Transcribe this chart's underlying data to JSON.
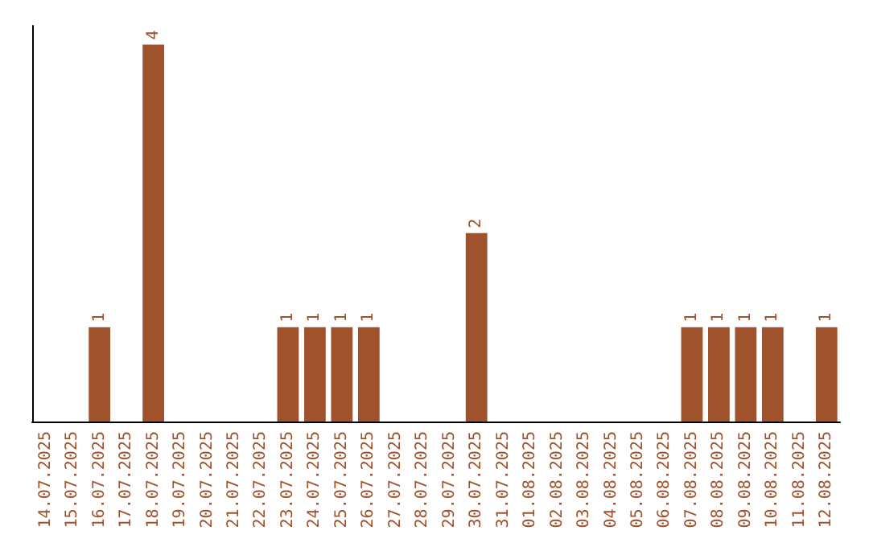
{
  "chart_data": {
    "type": "bar",
    "categories": [
      "14.07.2025",
      "15.07.2025",
      "16.07.2025",
      "17.07.2025",
      "18.07.2025",
      "19.07.2025",
      "20.07.2025",
      "21.07.2025",
      "22.07.2025",
      "23.07.2025",
      "24.07.2025",
      "25.07.2025",
      "26.07.2025",
      "27.07.2025",
      "28.07.2025",
      "29.07.2025",
      "30.07.2025",
      "31.07.2025",
      "01.08.2025",
      "02.08.2025",
      "03.08.2025",
      "04.08.2025",
      "05.08.2025",
      "06.08.2025",
      "07.08.2025",
      "08.08.2025",
      "09.08.2025",
      "10.08.2025",
      "11.08.2025",
      "12.08.2025"
    ],
    "values": [
      null,
      null,
      1,
      null,
      4,
      null,
      null,
      null,
      null,
      1,
      1,
      1,
      1,
      null,
      null,
      null,
      2,
      null,
      null,
      null,
      null,
      null,
      null,
      null,
      1,
      1,
      1,
      1,
      null,
      1
    ],
    "color": "#a0522d",
    "ylim": [
      0,
      4.2
    ],
    "data_labels": true,
    "tick_labels": "x",
    "grid": false
  }
}
